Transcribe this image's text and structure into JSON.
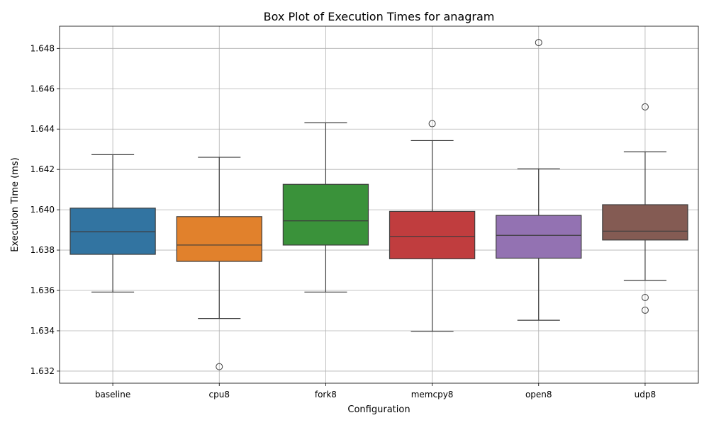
{
  "chart_data": {
    "type": "box",
    "title": "Box Plot of Execution Times for anagram",
    "xlabel": "Configuration",
    "ylabel": "Execution Time (ms)",
    "ylim": [
      1.6314,
      1.6491
    ],
    "yticks": [
      1.632,
      1.634,
      1.636,
      1.638,
      1.64,
      1.642,
      1.644,
      1.646,
      1.648
    ],
    "grid": true,
    "categories": [
      "baseline",
      "cpu8",
      "fork8",
      "memcpy8",
      "open8",
      "udp8"
    ],
    "boxes": [
      {
        "name": "baseline",
        "color": "#3274a1",
        "whisker_low": 1.63592,
        "q1": 1.63779,
        "median": 1.63891,
        "q3": 1.64008,
        "whisker_high": 1.64273,
        "outliers": []
      },
      {
        "name": "cpu8",
        "color": "#e1812c",
        "whisker_low": 1.63461,
        "q1": 1.63744,
        "median": 1.63825,
        "q3": 1.63966,
        "whisker_high": 1.6426,
        "outliers": [
          1.63222
        ]
      },
      {
        "name": "fork8",
        "color": "#3a923a",
        "whisker_low": 1.63592,
        "q1": 1.63825,
        "median": 1.63945,
        "q3": 1.64126,
        "whisker_high": 1.64431,
        "outliers": []
      },
      {
        "name": "memcpy8",
        "color": "#c03d3e",
        "whisker_low": 1.63397,
        "q1": 1.63757,
        "median": 1.63868,
        "q3": 1.63992,
        "whisker_high": 1.64343,
        "outliers": [
          1.64427
        ]
      },
      {
        "name": "open8",
        "color": "#9372b2",
        "whisker_low": 1.63452,
        "q1": 1.6376,
        "median": 1.63873,
        "q3": 1.63972,
        "whisker_high": 1.64203,
        "outliers": [
          1.64829
        ]
      },
      {
        "name": "udp8",
        "color": "#845b53",
        "whisker_low": 1.6365,
        "q1": 1.6385,
        "median": 1.63894,
        "q3": 1.64025,
        "whisker_high": 1.64287,
        "outliers": [
          1.6451,
          1.63565,
          1.63502
        ]
      }
    ]
  }
}
